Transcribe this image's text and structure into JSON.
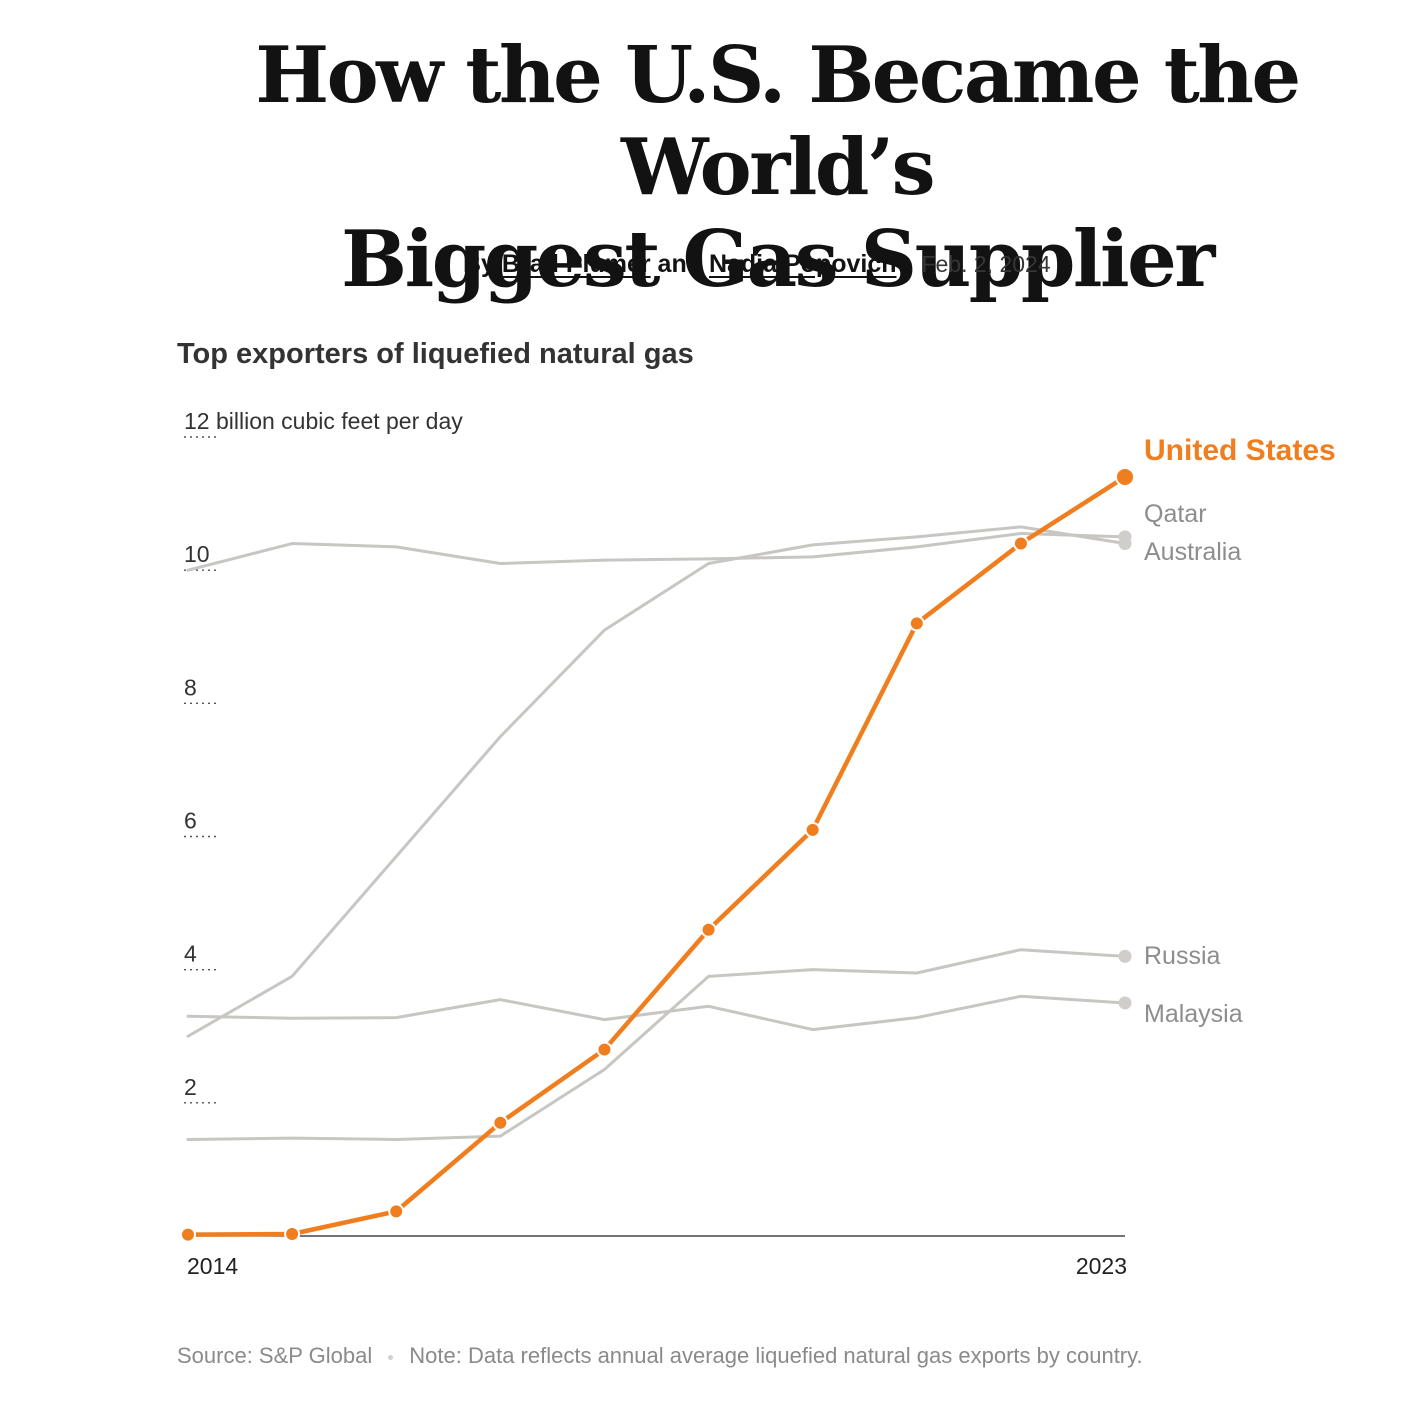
{
  "article": {
    "headline_line1": "How the U.S. Became the World’s",
    "headline_line2": "Biggest Gas Supplier",
    "byline_prefix": "By",
    "author1": "Brad Plumer",
    "byline_and": "and",
    "author2": "Nadja Popovich",
    "date": "Feb. 2, 2024"
  },
  "chart_data": {
    "type": "line",
    "title": "Top exporters of liquefied natural gas",
    "ylabel": "billion cubic feet per day",
    "ylim": [
      0,
      12
    ],
    "y_ticks": [
      {
        "value": 12,
        "label": "12 billion cubic feet per day"
      },
      {
        "value": 10,
        "label": "10"
      },
      {
        "value": 8,
        "label": "8"
      },
      {
        "value": 6,
        "label": "6"
      },
      {
        "value": 4,
        "label": "4"
      },
      {
        "value": 2,
        "label": "2"
      }
    ],
    "x": [
      2014,
      2015,
      2016,
      2017,
      2018,
      2019,
      2020,
      2021,
      2022,
      2023
    ],
    "x_tick_labels": [
      {
        "value": 2014,
        "label": "2014"
      },
      {
        "value": 2023,
        "label": "2023"
      }
    ],
    "grid": false,
    "series": [
      {
        "name": "Qatar",
        "color": "#c8c6c2",
        "highlight": false,
        "values": [
          10.0,
          10.4,
          10.35,
          10.1,
          10.15,
          10.17,
          10.2,
          10.35,
          10.55,
          10.5
        ]
      },
      {
        "name": "Australia",
        "color": "#c8c6c2",
        "highlight": false,
        "values": [
          3.0,
          3.9,
          5.7,
          7.5,
          9.1,
          10.1,
          10.38,
          10.5,
          10.65,
          10.4
        ]
      },
      {
        "name": "Russia",
        "color": "#c8c6c2",
        "highlight": false,
        "values": [
          1.45,
          1.47,
          1.45,
          1.5,
          2.5,
          3.9,
          4.0,
          3.95,
          4.3,
          4.2
        ]
      },
      {
        "name": "Malaysia",
        "color": "#c8c6c2",
        "highlight": false,
        "values": [
          3.3,
          3.27,
          3.28,
          3.55,
          3.25,
          3.45,
          3.1,
          3.28,
          3.6,
          3.5
        ]
      },
      {
        "name": "United States",
        "color": "#f07e1f",
        "highlight": true,
        "values": [
          0.02,
          0.03,
          0.37,
          1.7,
          2.8,
          4.6,
          6.1,
          9.2,
          10.4,
          11.4
        ]
      }
    ]
  },
  "footer": {
    "source": "Source: S&P Global",
    "note": "Note: Data reflects annual average liquefied natural gas exports by country."
  }
}
